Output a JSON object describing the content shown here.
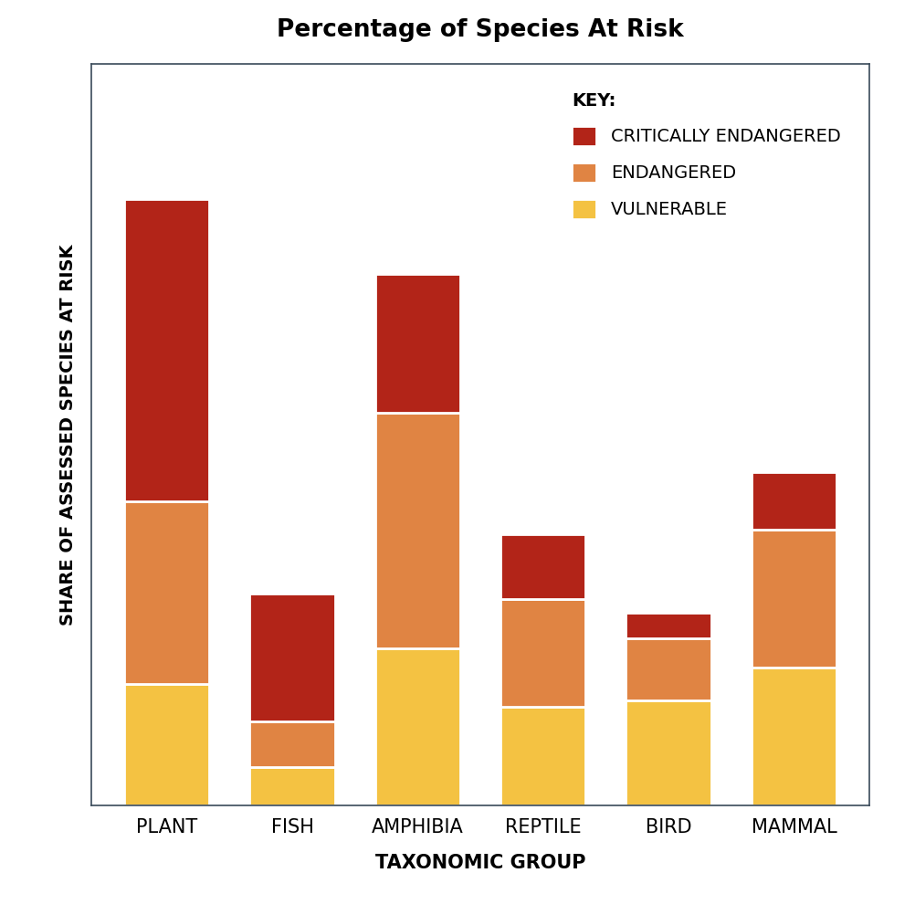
{
  "chart_data": {
    "type": "bar",
    "stacked": true,
    "title": "Percentage of Species At Risk",
    "x_label": "TAXONOMIC GROUP",
    "y_label": "SHARE OF ASSESSED SPECIES AT RISK",
    "categories": [
      "PLANT",
      "FISH",
      "AMPHIBIA",
      "REPTILE",
      "BIRD",
      "MAMMAL"
    ],
    "series": [
      {
        "name": "VULNERABLE",
        "color": "#F4C242",
        "values": [
          13.1,
          4.1,
          16.9,
          10.6,
          11.3,
          14.9
        ]
      },
      {
        "name": "ENDANGERED",
        "color": "#E08443",
        "values": [
          19.7,
          4.9,
          25.5,
          11.7,
          6.7,
          14.8
        ]
      },
      {
        "name": "CRITICALLY ENDANGERED",
        "color": "#B22418",
        "values": [
          32.6,
          13.8,
          14.9,
          7.0,
          2.8,
          6.3
        ]
      }
    ],
    "ylim": [
      0,
      80
    ],
    "yticks": [],
    "tick_labels": "x",
    "grid": false,
    "legend": "upper right",
    "legend_title": "KEY:"
  }
}
